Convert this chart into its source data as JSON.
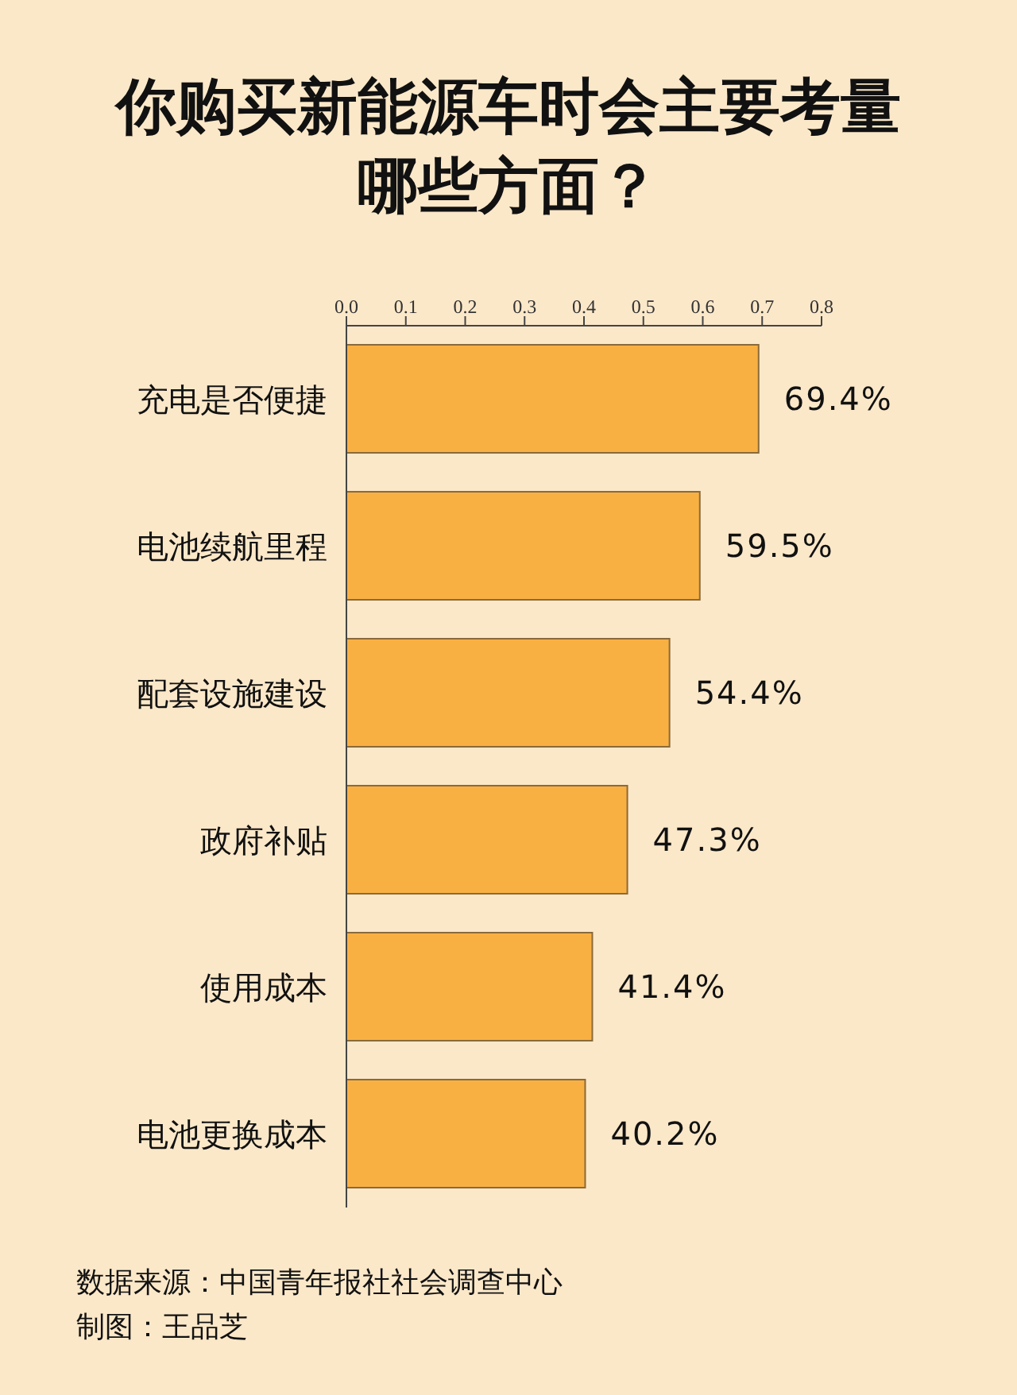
{
  "chart_data": {
    "type": "bar",
    "orientation": "horizontal",
    "title": "你购买新能源车时会主要考量哪些方面？",
    "categories": [
      "充电是否便捷",
      "电池续航里程",
      "配套设施建设",
      "政府补贴",
      "使用成本",
      "电池更换成本"
    ],
    "values": [
      0.694,
      0.595,
      0.544,
      0.473,
      0.414,
      0.402
    ],
    "value_labels": [
      "69.4%",
      "59.5%",
      "54.4%",
      "47.3%",
      "41.4%",
      "40.2%"
    ],
    "color": "#f9b043",
    "xlim": [
      0,
      0.8
    ],
    "xticks": [
      {
        "value": 0,
        "label": "0.0"
      },
      {
        "value": 0.1,
        "label": "0.1"
      },
      {
        "value": 0.2,
        "label": "0.2"
      },
      {
        "value": 0.3,
        "label": "0.3"
      },
      {
        "value": 0.4,
        "label": "0.4"
      },
      {
        "value": 0.5,
        "label": "0.5"
      },
      {
        "value": 0.6,
        "label": "0.6"
      },
      {
        "value": 0.7,
        "label": "0.7"
      },
      {
        "value": 0.8,
        "label": "0.8"
      }
    ],
    "grid": false,
    "annotations": [
      "数据来源：中国青年报社社会调查中心",
      "制图：王品芝"
    ]
  }
}
